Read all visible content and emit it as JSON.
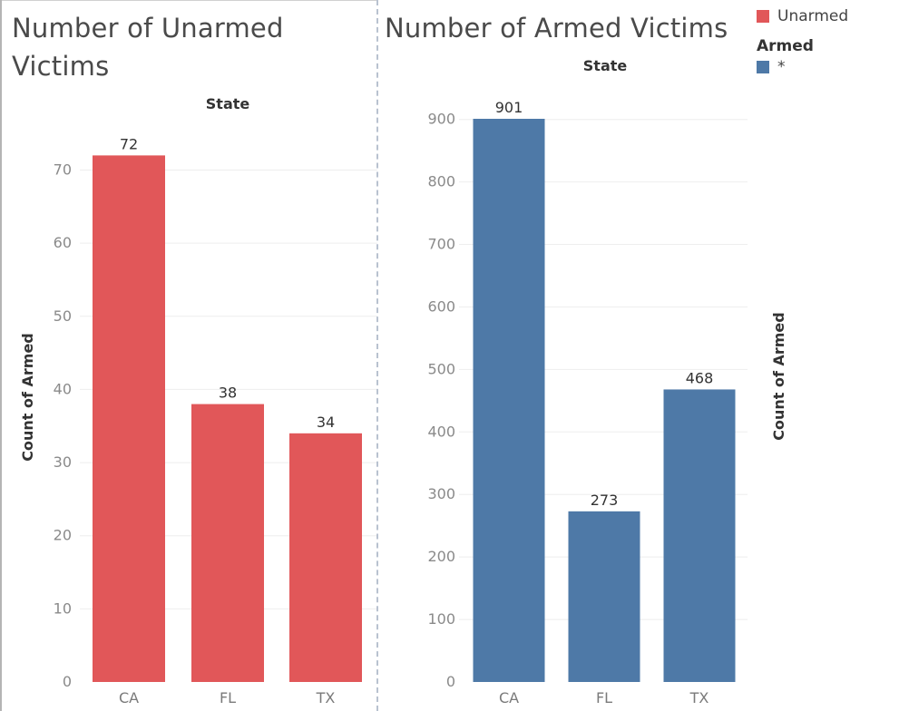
{
  "chart_data": [
    {
      "type": "bar",
      "title": "Number of Unarmed Victims",
      "header": "State",
      "ylabel": "Count of Armed",
      "xlabel": "",
      "categories": [
        "CA",
        "FL",
        "TX"
      ],
      "values": [
        72,
        38,
        34
      ],
      "ylim": [
        0,
        78
      ],
      "yticks": [
        0,
        10,
        20,
        30,
        40,
        50,
        60,
        70
      ],
      "color": "#e15759",
      "grid": true
    },
    {
      "type": "bar",
      "title": "Number of Armed Victims",
      "header": "State",
      "ylabel": "Count of Armed",
      "xlabel": "",
      "categories": [
        "CA",
        "FL",
        "TX"
      ],
      "values": [
        901,
        273,
        468
      ],
      "ylim": [
        0,
        975
      ],
      "yticks": [
        0,
        100,
        200,
        300,
        400,
        500,
        600,
        700,
        800,
        900
      ],
      "color": "#4e79a7",
      "grid": true
    }
  ],
  "legend": {
    "unarmed_label": "Unarmed",
    "unarmed_color": "#e15759",
    "armed_title": "Armed",
    "armed_label": "*",
    "armed_color": "#4e79a7"
  }
}
